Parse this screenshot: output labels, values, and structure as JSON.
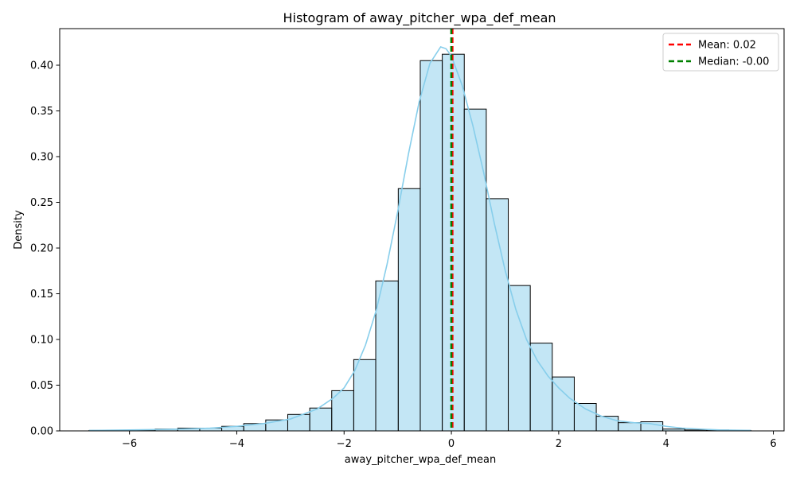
{
  "chart_data": {
    "type": "bar",
    "title": "Histogram of away_pitcher_wpa_def_mean",
    "xlabel": "away_pitcher_wpa_def_mean",
    "ylabel": "Density",
    "xlim": [
      -7.3,
      6.2
    ],
    "ylim": [
      0,
      0.44
    ],
    "xticks": [
      -6,
      -4,
      -2,
      0,
      2,
      4,
      6
    ],
    "yticks": [
      0.0,
      0.05,
      0.1,
      0.15,
      0.2,
      0.25,
      0.3,
      0.35,
      0.4
    ],
    "bin_edges": [
      -6.75,
      -6.34,
      -5.93,
      -5.52,
      -5.1,
      -4.69,
      -4.28,
      -3.87,
      -3.46,
      -3.05,
      -2.64,
      -2.23,
      -1.82,
      -1.41,
      -0.99,
      -0.58,
      -0.17,
      0.24,
      0.65,
      1.06,
      1.47,
      1.88,
      2.29,
      2.7,
      3.11,
      3.53,
      3.94,
      4.35,
      4.76,
      5.17,
      5.58
    ],
    "density": [
      0.0005,
      0.0005,
      0.001,
      0.002,
      0.003,
      0.003,
      0.005,
      0.008,
      0.012,
      0.018,
      0.025,
      0.044,
      0.078,
      0.164,
      0.265,
      0.405,
      0.412,
      0.352,
      0.254,
      0.159,
      0.096,
      0.059,
      0.03,
      0.016,
      0.009,
      0.01,
      0.002,
      0.001,
      0.001,
      0.0005
    ],
    "kde": {
      "x": [
        -6.75,
        -6.0,
        -5.5,
        -5.0,
        -4.5,
        -4.0,
        -3.5,
        -3.0,
        -2.5,
        -2.2,
        -2.0,
        -1.8,
        -1.6,
        -1.4,
        -1.2,
        -1.0,
        -0.8,
        -0.6,
        -0.4,
        -0.2,
        -0.1,
        0.0,
        0.2,
        0.4,
        0.6,
        0.8,
        1.0,
        1.2,
        1.4,
        1.6,
        1.8,
        2.0,
        2.2,
        2.5,
        2.8,
        3.1,
        3.4,
        3.7,
        4.0,
        4.3,
        4.6,
        5.0,
        5.58
      ],
      "y": [
        0.0005,
        0.001,
        0.0015,
        0.002,
        0.003,
        0.005,
        0.008,
        0.013,
        0.024,
        0.036,
        0.047,
        0.066,
        0.094,
        0.132,
        0.182,
        0.24,
        0.303,
        0.36,
        0.402,
        0.42,
        0.418,
        0.41,
        0.378,
        0.334,
        0.283,
        0.227,
        0.176,
        0.133,
        0.1,
        0.077,
        0.06,
        0.047,
        0.036,
        0.024,
        0.016,
        0.011,
        0.009,
        0.008,
        0.005,
        0.003,
        0.002,
        0.001,
        0.0005
      ]
    },
    "mean": 0.02,
    "median": -0.002,
    "legend": {
      "position": "top-right",
      "mean_label": "Mean: 0.02",
      "median_label": "Median: -0.00"
    },
    "colors": {
      "bar_fill": "#87ceeb",
      "bar_edge": "#000000",
      "kde": "#87ceeb",
      "mean_line": "#ff0000",
      "median_line": "#008000"
    },
    "grid": false
  }
}
